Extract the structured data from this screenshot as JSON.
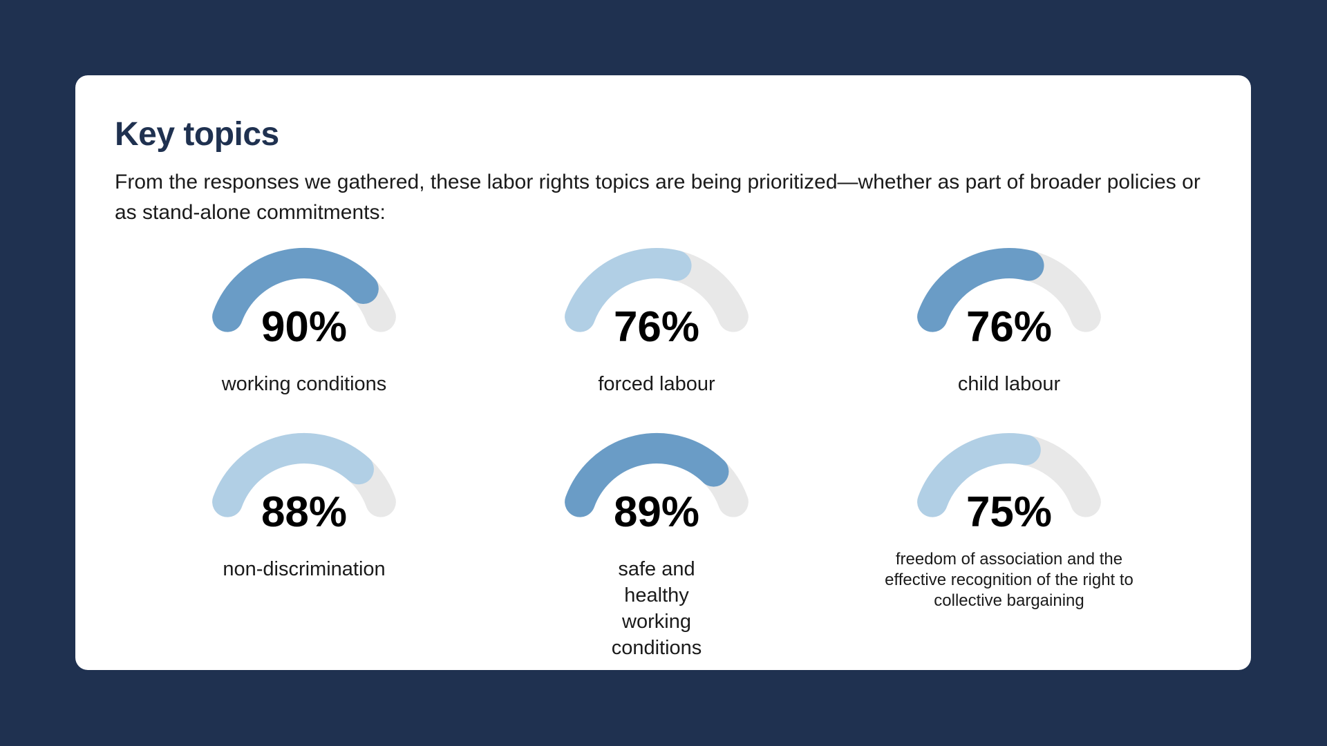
{
  "card": {
    "title": "Key topics",
    "subtitle": "From the responses we gathered, these labor rights topics are being prioritized—whether as part of broader policies or as stand-alone commitments:"
  },
  "colors": {
    "background": "#1f3150",
    "card": "#ffffff",
    "track": "#e8e8e8",
    "accent_dark": "#6a9cc6",
    "accent_light": "#b1cfe5",
    "title": "#1f3150"
  },
  "chart_data": {
    "type": "gauge",
    "title": "Key topics",
    "unit": "%",
    "items": [
      {
        "label": "working conditions",
        "value": 90,
        "display": "90%",
        "color": "#6a9cc6"
      },
      {
        "label": "forced labour",
        "value": 76,
        "display": "76%",
        "color": "#b1cfe5"
      },
      {
        "label": "child labour",
        "value": 76,
        "display": "76%",
        "color": "#6a9cc6"
      },
      {
        "label": "non-discrimination",
        "value": 88,
        "display": "88%",
        "color": "#b1cfe5"
      },
      {
        "label": "safe and healthy working conditions",
        "value": 89,
        "display": "89%",
        "color": "#6a9cc6"
      },
      {
        "label": "freedom of association and the effective recognition of the right to collective bargaining",
        "value": 75,
        "display": "75%",
        "color": "#b1cfe5"
      }
    ]
  }
}
